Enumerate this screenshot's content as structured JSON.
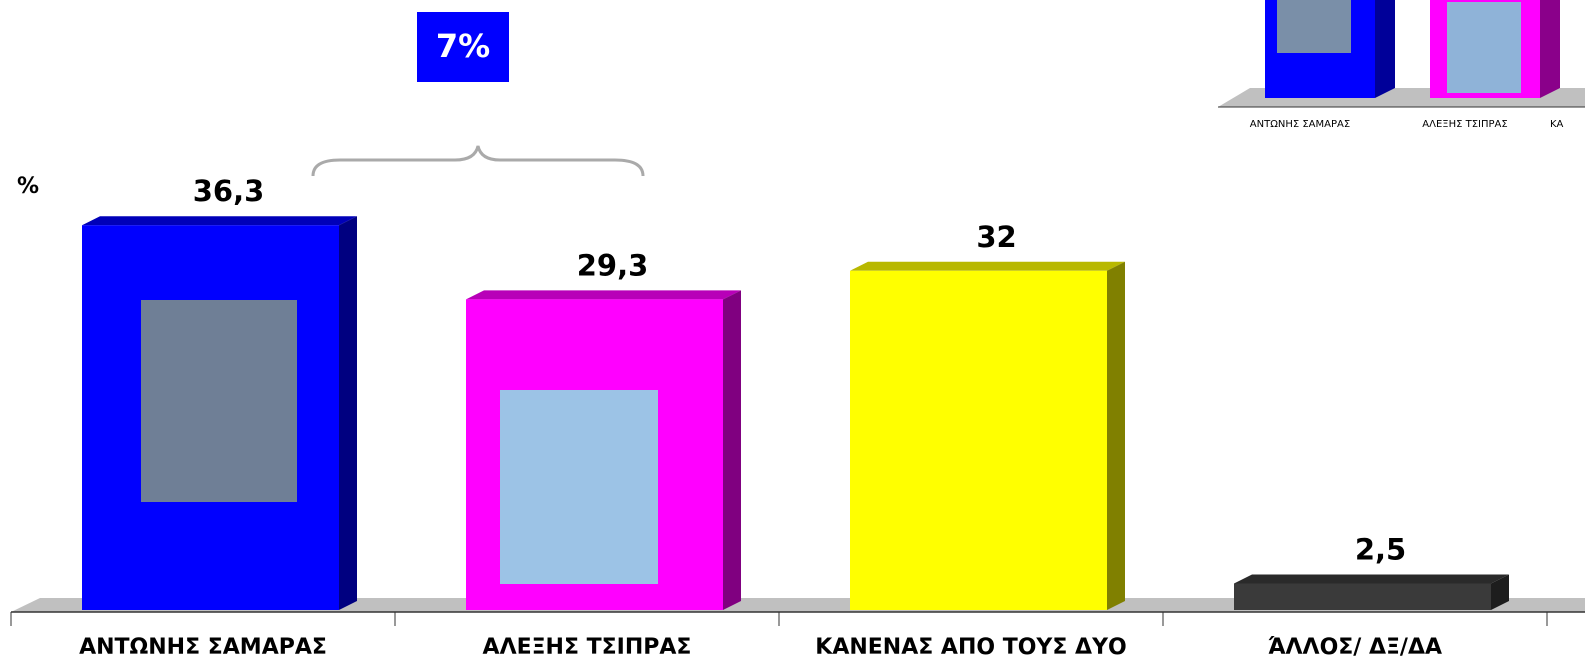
{
  "chart_data": {
    "type": "bar3d",
    "y_label": "%",
    "categories": [
      "ΑΝΤΩΝΗΣ ΣΑΜΑΡΑΣ",
      "ΑΛΕΞΗΣ ΤΣΙΠΡΑΣ",
      "ΚΑΝΕΝΑΣ ΑΠΟ ΤΟΥΣ ΔΥΟ",
      "ΆΛΛΟΣ/ ΔΞ/ΔΑ"
    ],
    "values": [
      36.3,
      29.3,
      32,
      2.5
    ],
    "value_labels": [
      "36,3",
      "29,3",
      "32",
      "2,5"
    ],
    "colors": [
      "#0000ff",
      "#ff00ff",
      "#ffff00",
      "#3a3a3a"
    ],
    "ylim": [
      0,
      40
    ],
    "annotation": "7%",
    "inset_labels": [
      "ΑΝΤΩΝΗΣ ΣΑΜΑΡΑΣ",
      "ΑΛΕΞΗΣ ΤΣΙΠΡΑΣ",
      "ΚΑ"
    ]
  }
}
